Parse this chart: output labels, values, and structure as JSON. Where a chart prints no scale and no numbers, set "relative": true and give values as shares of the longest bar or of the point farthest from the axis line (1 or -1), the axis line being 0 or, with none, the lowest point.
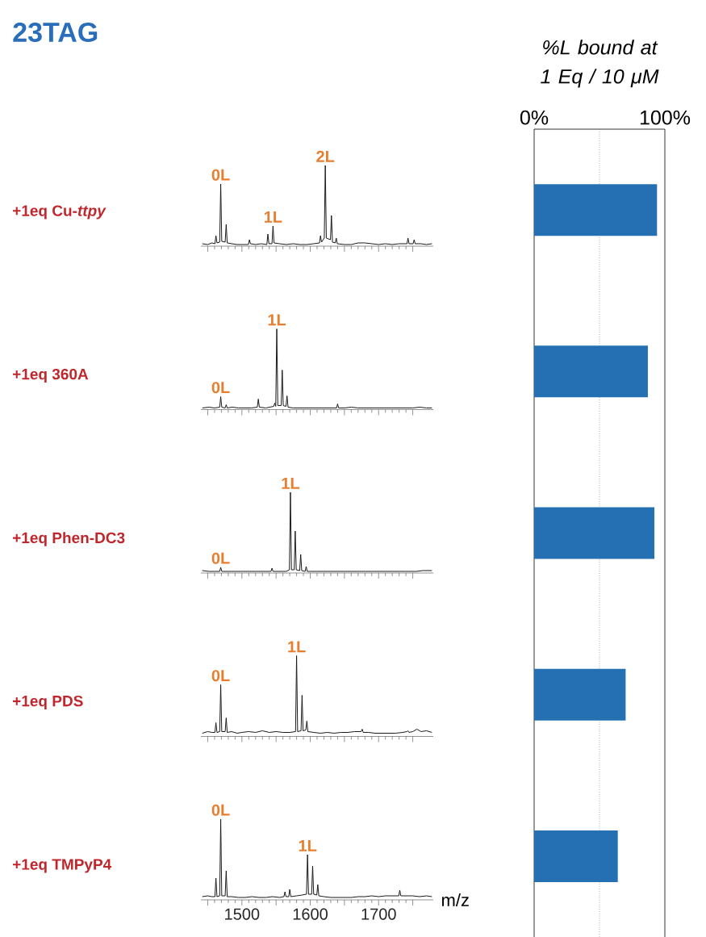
{
  "chart_data": [
    {
      "type": "line",
      "relative": true,
      "title": "23TAG",
      "ylabel": "+1eq Cu-*ttpy*",
      "color": "#1a1a1a",
      "xlim": [
        1440,
        1780
      ],
      "xticks": [
        {
          "value": 1450,
          "label": null
        },
        1500,
        {
          "value": 1550,
          "label": null
        },
        1600,
        {
          "value": 1650,
          "label": null
        },
        1700,
        {
          "value": 1750,
          "label": null
        }
      ],
      "tick_labels": false,
      "x": [
        1442,
        1450,
        1456,
        1460.5,
        1462,
        1463.5,
        1467.5,
        1469,
        1470.5,
        1475.5,
        1477,
        1478.5,
        1485,
        1493,
        1500,
        1509.5,
        1511,
        1512.5,
        1520,
        1528,
        1536.5,
        1538,
        1539.5,
        1544,
        1545.5,
        1547,
        1555,
        1565,
        1575,
        1585,
        1595,
        1605,
        1613.5,
        1615,
        1616.5,
        1620.5,
        1622,
        1623.5,
        1629.5,
        1631,
        1632.5,
        1636.5,
        1638,
        1639.5,
        1650,
        1660,
        1670,
        1680,
        1690,
        1700,
        1710,
        1720,
        1730,
        1741.5,
        1743,
        1744.5,
        1750.5,
        1752,
        1753.5,
        1762,
        1770,
        1778
      ],
      "values": [
        0.03,
        0.02,
        0.04,
        0.03,
        0.13,
        0.04,
        0.05,
        0.77,
        0.06,
        0.05,
        0.27,
        0.04,
        0.03,
        0.02,
        0.02,
        0.02,
        0.08,
        0.03,
        0.02,
        0.03,
        0.02,
        0.15,
        0.03,
        0.03,
        0.25,
        0.04,
        0.03,
        0.02,
        0.03,
        0.02,
        0.02,
        0.03,
        0.04,
        0.13,
        0.05,
        0.1,
        1,
        0.1,
        0.08,
        0.38,
        0.05,
        0.04,
        0.1,
        0.03,
        0.02,
        0.02,
        0.04,
        0.04,
        0.03,
        0.02,
        0.03,
        0.02,
        0.03,
        0.03,
        0.1,
        0.03,
        0.03,
        0.08,
        0.03,
        0.03,
        0.02,
        0.03
      ],
      "annotations": [
        {
          "text": "0L",
          "x": 1469,
          "y": 0.77
        },
        {
          "text": "1L",
          "x": 1545.5,
          "y": 0.25
        },
        {
          "text": "2L",
          "x": 1622,
          "y": 1
        }
      ]
    },
    {
      "type": "line",
      "relative": true,
      "ylabel": "+1eq 360A",
      "color": "#1a1a1a",
      "xlim": [
        1440,
        1780
      ],
      "xticks": [
        {
          "value": 1450,
          "label": null
        },
        1500,
        {
          "value": 1550,
          "label": null
        },
        1600,
        {
          "value": 1650,
          "label": null
        },
        1700,
        {
          "value": 1750,
          "label": null
        }
      ],
      "tick_labels": false,
      "x": [
        1442,
        1452,
        1460,
        1467.5,
        1469,
        1470.5,
        1475.5,
        1477,
        1478.5,
        1486,
        1495,
        1505,
        1514,
        1522.5,
        1524,
        1525.5,
        1535,
        1546.5,
        1548,
        1549.5,
        1551,
        1552.5,
        1557.5,
        1559,
        1560.5,
        1564.5,
        1566,
        1567.5,
        1575,
        1585,
        1595,
        1605,
        1615,
        1625,
        1638.5,
        1640,
        1641.5,
        1650,
        1660,
        1670,
        1680,
        1690,
        1700,
        1710,
        1720,
        1730,
        1740,
        1750,
        1760,
        1770,
        1778
      ],
      "values": [
        0.02,
        0.03,
        0.02,
        0.03,
        0.16,
        0.03,
        0.02,
        0.06,
        0.02,
        0.03,
        0.02,
        0.02,
        0.02,
        0.03,
        0.13,
        0.03,
        0.02,
        0.04,
        0.08,
        0.04,
        1,
        0.05,
        0.05,
        0.49,
        0.05,
        0.04,
        0.17,
        0.03,
        0.02,
        0.02,
        0.02,
        0.02,
        0.02,
        0.02,
        0.02,
        0.07,
        0.02,
        0.02,
        0.03,
        0.02,
        0.02,
        0.02,
        0.02,
        0.02,
        0.02,
        0.02,
        0.02,
        0.02,
        0.03,
        0.02,
        0.02
      ],
      "annotations": [
        {
          "text": "0L",
          "x": 1469,
          "y": 0.16
        },
        {
          "text": "1L",
          "x": 1551,
          "y": 1
        }
      ]
    },
    {
      "type": "line",
      "relative": true,
      "ylabel": "+1eq Phen-DC3",
      "color": "#1a1a1a",
      "xlim": [
        1440,
        1780
      ],
      "xticks": [
        {
          "value": 1450,
          "label": null
        },
        1500,
        {
          "value": 1550,
          "label": null
        },
        1600,
        {
          "value": 1650,
          "label": null
        },
        1700,
        {
          "value": 1750,
          "label": null
        }
      ],
      "tick_labels": false,
      "x": [
        1442,
        1452,
        1460,
        1467.5,
        1469,
        1470.5,
        1480,
        1490,
        1500,
        1510,
        1520,
        1530,
        1542.5,
        1544,
        1545.5,
        1555,
        1565,
        1569.5,
        1571,
        1572.5,
        1576.5,
        1578,
        1579.5,
        1584.5,
        1586,
        1587.5,
        1592.5,
        1594,
        1595.5,
        1605,
        1615,
        1625,
        1635,
        1645,
        1655,
        1665,
        1675,
        1685,
        1695,
        1705,
        1715,
        1725,
        1735,
        1745,
        1755,
        1765,
        1778
      ],
      "values": [
        0.03,
        0.02,
        0.02,
        0.02,
        0.07,
        0.02,
        0.02,
        0.02,
        0.02,
        0.02,
        0.02,
        0.02,
        0.02,
        0.06,
        0.02,
        0.02,
        0.02,
        0.04,
        1,
        0.04,
        0.04,
        0.52,
        0.04,
        0.03,
        0.23,
        0.03,
        0.02,
        0.08,
        0.02,
        0.02,
        0.02,
        0.02,
        0.02,
        0.02,
        0.02,
        0.02,
        0.02,
        0.02,
        0.02,
        0.02,
        0.02,
        0.02,
        0.02,
        0.02,
        0.02,
        0.03,
        0.03
      ],
      "annotations": [
        {
          "text": "0L",
          "x": 1469,
          "y": 0.07
        },
        {
          "text": "1L",
          "x": 1571,
          "y": 1
        }
      ]
    },
    {
      "type": "line",
      "relative": true,
      "ylabel": "+1eq PDS",
      "color": "#1a1a1a",
      "xlim": [
        1440,
        1780
      ],
      "xticks": [
        {
          "value": 1450,
          "label": null
        },
        1500,
        {
          "value": 1550,
          "label": null
        },
        1600,
        {
          "value": 1650,
          "label": null
        },
        1700,
        {
          "value": 1750,
          "label": null
        }
      ],
      "tick_labels": false,
      "x": [
        1442,
        1450,
        1456,
        1460.5,
        1462,
        1463.5,
        1467.5,
        1469,
        1470.5,
        1475.5,
        1477,
        1478.5,
        1485,
        1493,
        1500,
        1510,
        1520,
        1530,
        1540,
        1550,
        1560,
        1570,
        1578.5,
        1580,
        1581.5,
        1586.5,
        1588,
        1589.5,
        1593.5,
        1595,
        1596.5,
        1605,
        1615,
        1625,
        1635,
        1645,
        1655,
        1665,
        1674.5,
        1676,
        1677.5,
        1685,
        1695,
        1705,
        1715,
        1725,
        1735,
        1741.5,
        1743,
        1744.5,
        1750,
        1756,
        1762,
        1770,
        1778
      ],
      "values": [
        0.04,
        0.06,
        0.05,
        0.05,
        0.17,
        0.05,
        0.06,
        0.64,
        0.06,
        0.06,
        0.23,
        0.05,
        0.06,
        0.04,
        0.05,
        0.06,
        0.05,
        0.07,
        0.05,
        0.06,
        0.05,
        0.05,
        0.06,
        1,
        0.06,
        0.07,
        0.51,
        0.07,
        0.08,
        0.19,
        0.06,
        0.05,
        0.04,
        0.05,
        0.04,
        0.05,
        0.05,
        0.06,
        0.06,
        0.09,
        0.05,
        0.05,
        0.04,
        0.04,
        0.04,
        0.04,
        0.05,
        0.06,
        0.07,
        0.05,
        0.06,
        0.09,
        0.06,
        0.07,
        0.05
      ],
      "annotations": [
        {
          "text": "0L",
          "x": 1469,
          "y": 0.64
        },
        {
          "text": "1L",
          "x": 1580,
          "y": 1
        }
      ]
    },
    {
      "type": "line",
      "relative": true,
      "color": "#1a1a1a",
      "xlim": [
        1440,
        1780
      ],
      "xticks": [
        {
          "value": 1450,
          "label": null
        },
        1500,
        {
          "value": 1550,
          "label": null
        },
        1600,
        {
          "value": 1650,
          "label": null
        },
        1700,
        {
          "value": 1750,
          "label": null
        }
      ],
      "tick_labels": "x",
      "xlabel": "m/z",
      "ylabel": "+1eq TMPyP4",
      "x": [
        1442,
        1450,
        1456,
        1460.5,
        1462,
        1463.5,
        1467.5,
        1469,
        1470.5,
        1475.5,
        1477,
        1478.5,
        1485,
        1495,
        1505,
        1515,
        1525,
        1535,
        1545,
        1555,
        1561.5,
        1563,
        1564.5,
        1568.5,
        1570,
        1571.5,
        1580,
        1588,
        1594.5,
        1596,
        1597.5,
        1602,
        1603.5,
        1605,
        1609.5,
        1611,
        1612.5,
        1620,
        1630,
        1640,
        1650,
        1660,
        1670,
        1680,
        1690,
        1700,
        1710,
        1720,
        1729.5,
        1731,
        1732.5,
        1740,
        1750,
        1760,
        1770,
        1778
      ],
      "values": [
        0.04,
        0.05,
        0.04,
        0.04,
        0.27,
        0.04,
        0.05,
        1,
        0.05,
        0.05,
        0.36,
        0.04,
        0.04,
        0.03,
        0.03,
        0.04,
        0.03,
        0.03,
        0.04,
        0.03,
        0.04,
        0.1,
        0.04,
        0.04,
        0.13,
        0.04,
        0.05,
        0.06,
        0.07,
        0.56,
        0.07,
        0.07,
        0.42,
        0.07,
        0.06,
        0.19,
        0.05,
        0.04,
        0.03,
        0.03,
        0.03,
        0.03,
        0.04,
        0.04,
        0.05,
        0.04,
        0.05,
        0.05,
        0.05,
        0.12,
        0.05,
        0.05,
        0.05,
        0.04,
        0.05,
        0.04
      ],
      "annotations": [
        {
          "text": "0L",
          "x": 1469,
          "y": 1
        },
        {
          "text": "1L",
          "x": 1596,
          "y": 0.56
        }
      ]
    },
    {
      "type": "bar",
      "orientation": "horizontal",
      "xlabel": "%L bound at 1 Eq / 10 μM",
      "categories": [
        null,
        null,
        null,
        null,
        null
      ],
      "values": [
        94,
        87,
        92,
        70,
        64
      ],
      "color": "#2470b3",
      "xlim": [
        0,
        100
      ],
      "xticks": [
        {
          "value": 0,
          "label": "0%"
        },
        {
          "value": 100,
          "label": "100%"
        }
      ],
      "ref_lines": [
        {
          "axis": "x",
          "value": 50,
          "line_style": "dotted",
          "color": "#808080"
        }
      ]
    }
  ]
}
